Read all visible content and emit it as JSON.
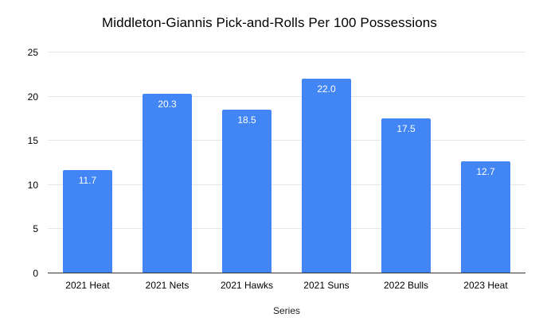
{
  "chart_data": {
    "type": "bar",
    "title": "Middleton-Giannis Pick-and-Rolls Per 100 Possessions",
    "xlabel": "Series",
    "ylabel": "",
    "categories": [
      "2021 Heat",
      "2021 Nets",
      "2021 Hawks",
      "2021 Suns",
      "2022 Bulls",
      "2023 Heat"
    ],
    "values": [
      11.7,
      20.3,
      18.5,
      22.0,
      17.5,
      12.7
    ],
    "value_labels": [
      "11.7",
      "20.3",
      "18.5",
      "22.0",
      "17.5",
      "12.7"
    ],
    "ylim": [
      0,
      25
    ],
    "yticks": [
      0,
      5,
      10,
      15,
      20,
      25
    ],
    "grid": "horizontal",
    "legend": "none",
    "colors": {
      "bar": "#4285f4",
      "bar_value_text": "#ffffff",
      "gridline": "#e6e6e6",
      "axis_line": "#333333",
      "title_text": "#000000",
      "tick_text": "#000000"
    }
  }
}
